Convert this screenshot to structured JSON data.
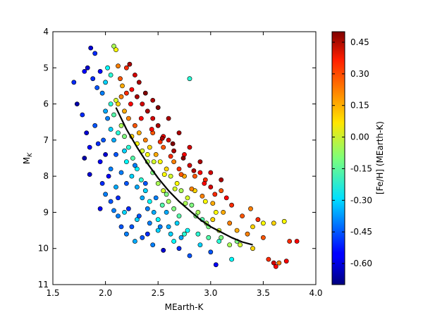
{
  "chart_data": {
    "type": "scatter",
    "xlabel": "MEarth-K",
    "ylabel_main": "M",
    "ylabel_sub": "K",
    "xlim": [
      1.5,
      4.0
    ],
    "ylim": [
      11,
      4
    ],
    "x_ticks": [
      "1.5",
      "2.0",
      "2.5",
      "3.0",
      "3.5",
      "4.0"
    ],
    "y_ticks": [
      "4",
      "5",
      "6",
      "7",
      "8",
      "9",
      "10",
      "11"
    ],
    "y_inverted": true,
    "grid": false,
    "colorbar": {
      "label": "[Fe/H] (MEarth-K)",
      "range": [
        -0.7,
        0.5
      ],
      "ticks": [
        "-0.60",
        "-0.45",
        "-0.30",
        "-0.15",
        "0.00",
        "0.15",
        "0.30",
        "0.45"
      ],
      "colormap": "jet"
    },
    "points": [
      [
        1.7,
        5.4,
        -0.5
      ],
      [
        1.73,
        6.0,
        -0.65
      ],
      [
        1.8,
        5.1,
        -0.55
      ],
      [
        1.83,
        5.0,
        -0.6
      ],
      [
        1.86,
        4.45,
        -0.6
      ],
      [
        1.88,
        5.3,
        -0.5
      ],
      [
        1.9,
        4.6,
        -0.5
      ],
      [
        1.92,
        5.55,
        -0.45
      ],
      [
        1.95,
        5.1,
        -0.55
      ],
      [
        1.97,
        5.7,
        -0.4
      ],
      [
        2.0,
        5.4,
        -0.3
      ],
      [
        2.02,
        5.0,
        -0.25
      ],
      [
        2.05,
        5.2,
        -0.2
      ],
      [
        2.08,
        4.4,
        -0.05
      ],
      [
        2.1,
        4.5,
        0.05
      ],
      [
        2.12,
        4.95,
        0.2
      ],
      [
        2.14,
        5.3,
        0.25
      ],
      [
        2.2,
        5.0,
        0.3
      ],
      [
        2.23,
        4.9,
        0.45
      ],
      [
        2.8,
        5.3,
        -0.2
      ],
      [
        1.78,
        6.3,
        -0.5
      ],
      [
        1.82,
        6.8,
        -0.6
      ],
      [
        1.85,
        7.2,
        -0.55
      ],
      [
        1.8,
        7.5,
        -0.65
      ],
      [
        1.85,
        7.95,
        -0.6
      ],
      [
        1.9,
        6.6,
        -0.45
      ],
      [
        1.93,
        7.1,
        -0.5
      ],
      [
        1.95,
        7.6,
        -0.55
      ],
      [
        1.97,
        8.2,
        -0.5
      ],
      [
        2.0,
        6.2,
        -0.35
      ],
      [
        2.0,
        8.5,
        -0.4
      ],
      [
        1.95,
        8.9,
        -0.55
      ],
      [
        2.05,
        7.8,
        -0.4
      ],
      [
        2.05,
        8.7,
        -0.45
      ],
      [
        2.08,
        8.95,
        -0.4
      ],
      [
        2.1,
        8.3,
        -0.35
      ],
      [
        2.12,
        9.1,
        -0.4
      ],
      [
        2.15,
        9.4,
        -0.45
      ],
      [
        2.18,
        9.0,
        -0.3
      ],
      [
        2.2,
        9.6,
        -0.4
      ],
      [
        2.25,
        9.4,
        -0.45
      ],
      [
        2.28,
        9.8,
        -0.35
      ],
      [
        2.3,
        9.2,
        -0.3
      ],
      [
        2.35,
        9.7,
        -0.45
      ],
      [
        2.4,
        9.6,
        -0.5
      ],
      [
        2.45,
        9.9,
        -0.4
      ],
      [
        2.5,
        9.5,
        -0.3
      ],
      [
        2.55,
        10.05,
        -0.6
      ],
      [
        2.6,
        9.4,
        -0.35
      ],
      [
        2.65,
        9.8,
        -0.25
      ],
      [
        2.7,
        10.0,
        -0.5
      ],
      [
        2.75,
        9.6,
        -0.2
      ],
      [
        2.8,
        10.2,
        -0.45
      ],
      [
        2.9,
        9.9,
        -0.3
      ],
      [
        3.0,
        10.1,
        -0.45
      ],
      [
        3.05,
        10.45,
        -0.55
      ],
      [
        3.1,
        9.7,
        -0.1
      ],
      [
        3.2,
        10.3,
        -0.25
      ],
      [
        3.25,
        9.8,
        -0.1
      ],
      [
        3.4,
        10.0,
        0.1
      ],
      [
        3.5,
        9.7,
        0.25
      ],
      [
        3.55,
        10.3,
        0.3
      ],
      [
        3.6,
        10.4,
        0.4
      ],
      [
        3.62,
        10.5,
        0.35
      ],
      [
        3.65,
        10.4,
        0.2
      ],
      [
        3.72,
        10.35,
        0.35
      ],
      [
        3.75,
        9.8,
        0.3
      ],
      [
        3.82,
        9.8,
        0.35
      ],
      [
        3.7,
        9.25,
        0.05
      ],
      [
        3.6,
        9.3,
        0.1
      ],
      [
        3.5,
        9.3,
        0.05
      ],
      [
        3.38,
        8.9,
        0.2
      ],
      [
        3.2,
        8.8,
        0.3
      ],
      [
        3.15,
        8.6,
        0.35
      ],
      [
        3.1,
        8.4,
        0.25
      ],
      [
        3.0,
        8.3,
        0.4
      ],
      [
        2.95,
        8.1,
        0.3
      ],
      [
        2.9,
        7.9,
        0.35
      ],
      [
        2.85,
        8.0,
        0.25
      ],
      [
        2.8,
        7.7,
        0.4
      ],
      [
        2.75,
        7.4,
        0.35
      ],
      [
        2.7,
        7.8,
        0.3
      ],
      [
        2.65,
        7.3,
        0.45
      ],
      [
        2.6,
        7.0,
        0.4
      ],
      [
        2.55,
        6.9,
        0.35
      ],
      [
        2.5,
        6.6,
        0.45
      ],
      [
        2.45,
        6.4,
        0.4
      ],
      [
        2.4,
        6.2,
        0.45
      ],
      [
        2.35,
        6.0,
        0.4
      ],
      [
        2.3,
        5.8,
        0.45
      ],
      [
        2.25,
        5.6,
        0.35
      ],
      [
        2.2,
        5.7,
        0.3
      ],
      [
        2.15,
        5.8,
        0.2
      ],
      [
        2.12,
        6.0,
        0.1
      ],
      [
        2.18,
        6.2,
        0.15
      ],
      [
        2.22,
        6.4,
        0.2
      ],
      [
        2.28,
        6.6,
        0.25
      ],
      [
        2.32,
        6.8,
        0.15
      ],
      [
        2.38,
        7.0,
        0.2
      ],
      [
        2.42,
        7.2,
        0.1
      ],
      [
        2.48,
        7.4,
        0.15
      ],
      [
        2.52,
        7.6,
        0.05
      ],
      [
        2.58,
        7.8,
        0.1
      ],
      [
        2.62,
        8.0,
        0.0
      ],
      [
        2.68,
        8.2,
        0.05
      ],
      [
        2.72,
        8.4,
        -0.05
      ],
      [
        2.78,
        8.6,
        0.0
      ],
      [
        2.82,
        8.8,
        -0.1
      ],
      [
        2.88,
        9.0,
        -0.05
      ],
      [
        2.92,
        9.2,
        -0.15
      ],
      [
        2.98,
        9.4,
        -0.1
      ],
      [
        3.02,
        9.2,
        0.1
      ],
      [
        3.08,
        9.5,
        0.0
      ],
      [
        3.12,
        9.0,
        0.15
      ],
      [
        3.18,
        9.3,
        0.2
      ],
      [
        3.25,
        9.5,
        0.15
      ],
      [
        2.15,
        6.6,
        -0.05
      ],
      [
        2.18,
        6.9,
        -0.1
      ],
      [
        2.22,
        7.2,
        -0.2
      ],
      [
        2.26,
        7.5,
        -0.15
      ],
      [
        2.3,
        7.8,
        -0.25
      ],
      [
        2.34,
        8.1,
        -0.2
      ],
      [
        2.38,
        8.4,
        -0.3
      ],
      [
        2.42,
        8.7,
        -0.25
      ],
      [
        2.46,
        9.0,
        -0.35
      ],
      [
        2.5,
        9.2,
        -0.25
      ],
      [
        2.54,
        8.8,
        -0.15
      ],
      [
        2.58,
        8.5,
        -0.1
      ],
      [
        2.35,
        7.3,
        0.0
      ],
      [
        2.4,
        7.6,
        -0.05
      ],
      [
        2.45,
        7.9,
        -0.1
      ],
      [
        2.5,
        8.2,
        -0.05
      ],
      [
        2.55,
        8.4,
        0.0
      ],
      [
        2.6,
        8.7,
        -0.05
      ],
      [
        2.65,
        8.9,
        -0.1
      ],
      [
        2.7,
        9.1,
        -0.15
      ],
      [
        2.45,
        6.8,
        0.25
      ],
      [
        2.55,
        7.2,
        0.25
      ],
      [
        2.65,
        7.6,
        0.2
      ],
      [
        2.75,
        8.0,
        0.15
      ],
      [
        2.85,
        8.4,
        0.1
      ],
      [
        2.95,
        8.7,
        0.05
      ],
      [
        3.05,
        9.0,
        0.05
      ],
      [
        2.4,
        7.4,
        0.05
      ],
      [
        2.3,
        7.1,
        0.05
      ],
      [
        2.25,
        6.9,
        0.1
      ],
      [
        2.2,
        7.6,
        -0.25
      ],
      [
        2.25,
        8.0,
        -0.3
      ],
      [
        2.3,
        8.3,
        -0.35
      ],
      [
        2.35,
        8.6,
        -0.35
      ],
      [
        2.4,
        8.9,
        -0.4
      ],
      [
        2.2,
        8.2,
        -0.45
      ],
      [
        2.15,
        7.9,
        -0.4
      ],
      [
        2.1,
        7.4,
        -0.45
      ],
      [
        2.08,
        7.0,
        -0.35
      ],
      [
        2.05,
        6.7,
        -0.3
      ],
      [
        2.6,
        6.4,
        0.45
      ],
      [
        2.7,
        6.8,
        0.45
      ],
      [
        2.8,
        7.2,
        0.4
      ],
      [
        2.9,
        7.6,
        0.45
      ],
      [
        3.0,
        7.9,
        0.4
      ],
      [
        3.1,
        8.1,
        0.45
      ],
      [
        2.5,
        6.1,
        0.5
      ],
      [
        2.45,
        5.9,
        0.45
      ],
      [
        2.38,
        5.7,
        0.5
      ],
      [
        2.32,
        5.4,
        0.45
      ],
      [
        2.28,
        5.2,
        0.4
      ],
      [
        2.16,
        5.5,
        0.15
      ],
      [
        2.1,
        5.9,
        0.0
      ],
      [
        2.08,
        6.3,
        -0.15
      ],
      [
        2.12,
        6.8,
        -0.2
      ],
      [
        2.18,
        7.3,
        -0.3
      ],
      [
        2.28,
        7.7,
        -0.4
      ],
      [
        2.38,
        8.2,
        -0.45
      ],
      [
        2.48,
        8.6,
        -0.4
      ],
      [
        2.58,
        9.0,
        -0.35
      ],
      [
        2.68,
        9.3,
        -0.3
      ],
      [
        2.78,
        9.5,
        -0.25
      ],
      [
        2.88,
        9.6,
        -0.2
      ],
      [
        2.98,
        9.7,
        -0.15
      ],
      [
        3.08,
        9.8,
        -0.2
      ],
      [
        3.18,
        9.9,
        -0.05
      ],
      [
        3.28,
        9.9,
        0.0
      ],
      [
        3.35,
        9.6,
        0.2
      ],
      [
        3.45,
        9.2,
        0.3
      ],
      [
        3.3,
        9.1,
        0.25
      ],
      [
        3.4,
        9.4,
        0.1
      ],
      [
        2.52,
        7.05,
        0.3
      ],
      [
        2.62,
        7.45,
        0.3
      ],
      [
        2.72,
        7.95,
        0.25
      ],
      [
        2.82,
        8.35,
        0.2
      ],
      [
        2.92,
        8.55,
        0.2
      ],
      [
        3.02,
        8.75,
        0.15
      ],
      [
        2.46,
        7.6,
        0.0
      ],
      [
        2.56,
        7.95,
        0.05
      ],
      [
        2.66,
        8.35,
        0.0
      ],
      [
        2.76,
        8.75,
        -0.05
      ],
      [
        2.86,
        9.1,
        -0.1
      ],
      [
        2.96,
        9.3,
        -0.05
      ],
      [
        2.24,
        6.0,
        0.35
      ],
      [
        2.34,
        6.4,
        0.35
      ],
      [
        2.44,
        6.7,
        0.35
      ],
      [
        2.54,
        6.95,
        0.45
      ],
      [
        2.64,
        7.1,
        0.5
      ],
      [
        2.74,
        7.5,
        0.5
      ],
      [
        2.84,
        7.85,
        0.45
      ],
      [
        2.94,
        8.2,
        0.35
      ],
      [
        3.04,
        8.5,
        0.3
      ],
      [
        2.05,
        6.0,
        -0.2
      ],
      [
        2.02,
        6.4,
        -0.4
      ],
      [
        1.98,
        7.0,
        -0.45
      ],
      [
        2.0,
        7.4,
        -0.6
      ],
      [
        2.03,
        8.0,
        -0.55
      ],
      [
        2.12,
        8.6,
        -0.5
      ],
      [
        2.22,
        8.9,
        -0.5
      ],
      [
        2.32,
        9.1,
        -0.45
      ],
      [
        2.42,
        9.3,
        -0.4
      ],
      [
        2.52,
        9.4,
        -0.4
      ],
      [
        2.62,
        9.6,
        -0.3
      ],
      [
        2.72,
        9.7,
        -0.35
      ]
    ],
    "trend_line": [
      [
        2.1,
        6.1
      ],
      [
        2.2,
        6.7
      ],
      [
        2.3,
        7.2
      ],
      [
        2.4,
        7.65
      ],
      [
        2.5,
        8.05
      ],
      [
        2.6,
        8.4
      ],
      [
        2.7,
        8.7
      ],
      [
        2.8,
        8.95
      ],
      [
        2.9,
        9.2
      ],
      [
        3.0,
        9.4
      ],
      [
        3.1,
        9.55
      ],
      [
        3.2,
        9.7
      ],
      [
        3.3,
        9.82
      ],
      [
        3.4,
        9.9
      ]
    ]
  }
}
